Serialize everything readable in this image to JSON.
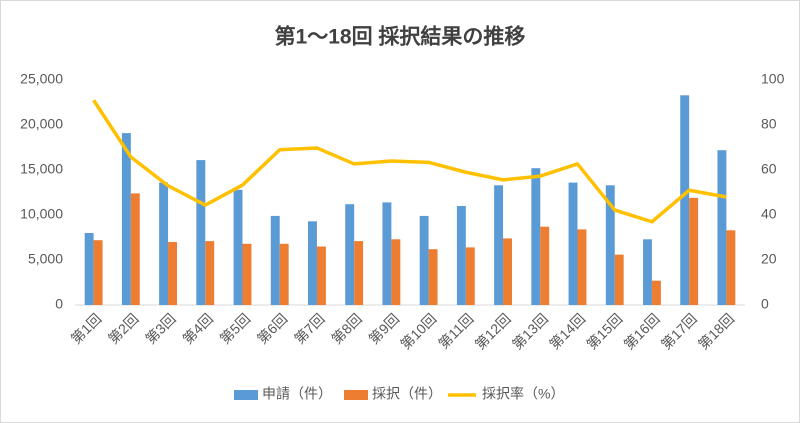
{
  "chart_data": {
    "type": "bar_line",
    "title": "第1～18回 採択結果の推移",
    "categories": [
      "第1回",
      "第2回",
      "第3回",
      "第4回",
      "第5回",
      "第6回",
      "第7回",
      "第8回",
      "第9回",
      "第10回",
      "第11回",
      "第12回",
      "第13回",
      "第14回",
      "第15回",
      "第16回",
      "第17回",
      "第18回"
    ],
    "series": [
      {
        "name": "申請（件）",
        "type": "bar",
        "color": "#5b9bd5",
        "values": [
          8000,
          19100,
          13600,
          16100,
          12800,
          9900,
          9300,
          11200,
          11400,
          9900,
          11000,
          13300,
          15200,
          13600,
          13300,
          7300,
          23300,
          17200
        ]
      },
      {
        "name": "採択（件）",
        "type": "bar",
        "color": "#ed7d31",
        "values": [
          7200,
          12400,
          7000,
          7100,
          6800,
          6800,
          6500,
          7100,
          7300,
          6200,
          6400,
          7400,
          8700,
          8400,
          5600,
          2700,
          11900,
          8300
        ]
      },
      {
        "name": "採択率（%）",
        "type": "line",
        "axis": "y2",
        "color": "#ffc000",
        "values": [
          91,
          65.8,
          53,
          44.4,
          53.3,
          69,
          69.8,
          62.7,
          64,
          63.4,
          59,
          55.6,
          57.3,
          62.7,
          42.2,
          37,
          51,
          48
        ]
      }
    ],
    "ylim": [
      0,
      25000
    ],
    "yticks": [
      0,
      {
        "value": 5000,
        "label": "5,000"
      },
      {
        "value": 10000,
        "label": "10,000"
      },
      {
        "value": 15000,
        "label": "15,000"
      },
      {
        "value": 20000,
        "label": "20,000"
      },
      {
        "value": 25000,
        "label": "25,000"
      }
    ],
    "y2lim": [
      0,
      100
    ],
    "y2ticks": [
      0,
      20,
      40,
      60,
      80,
      100
    ],
    "grid": false,
    "legend": "bottom"
  }
}
